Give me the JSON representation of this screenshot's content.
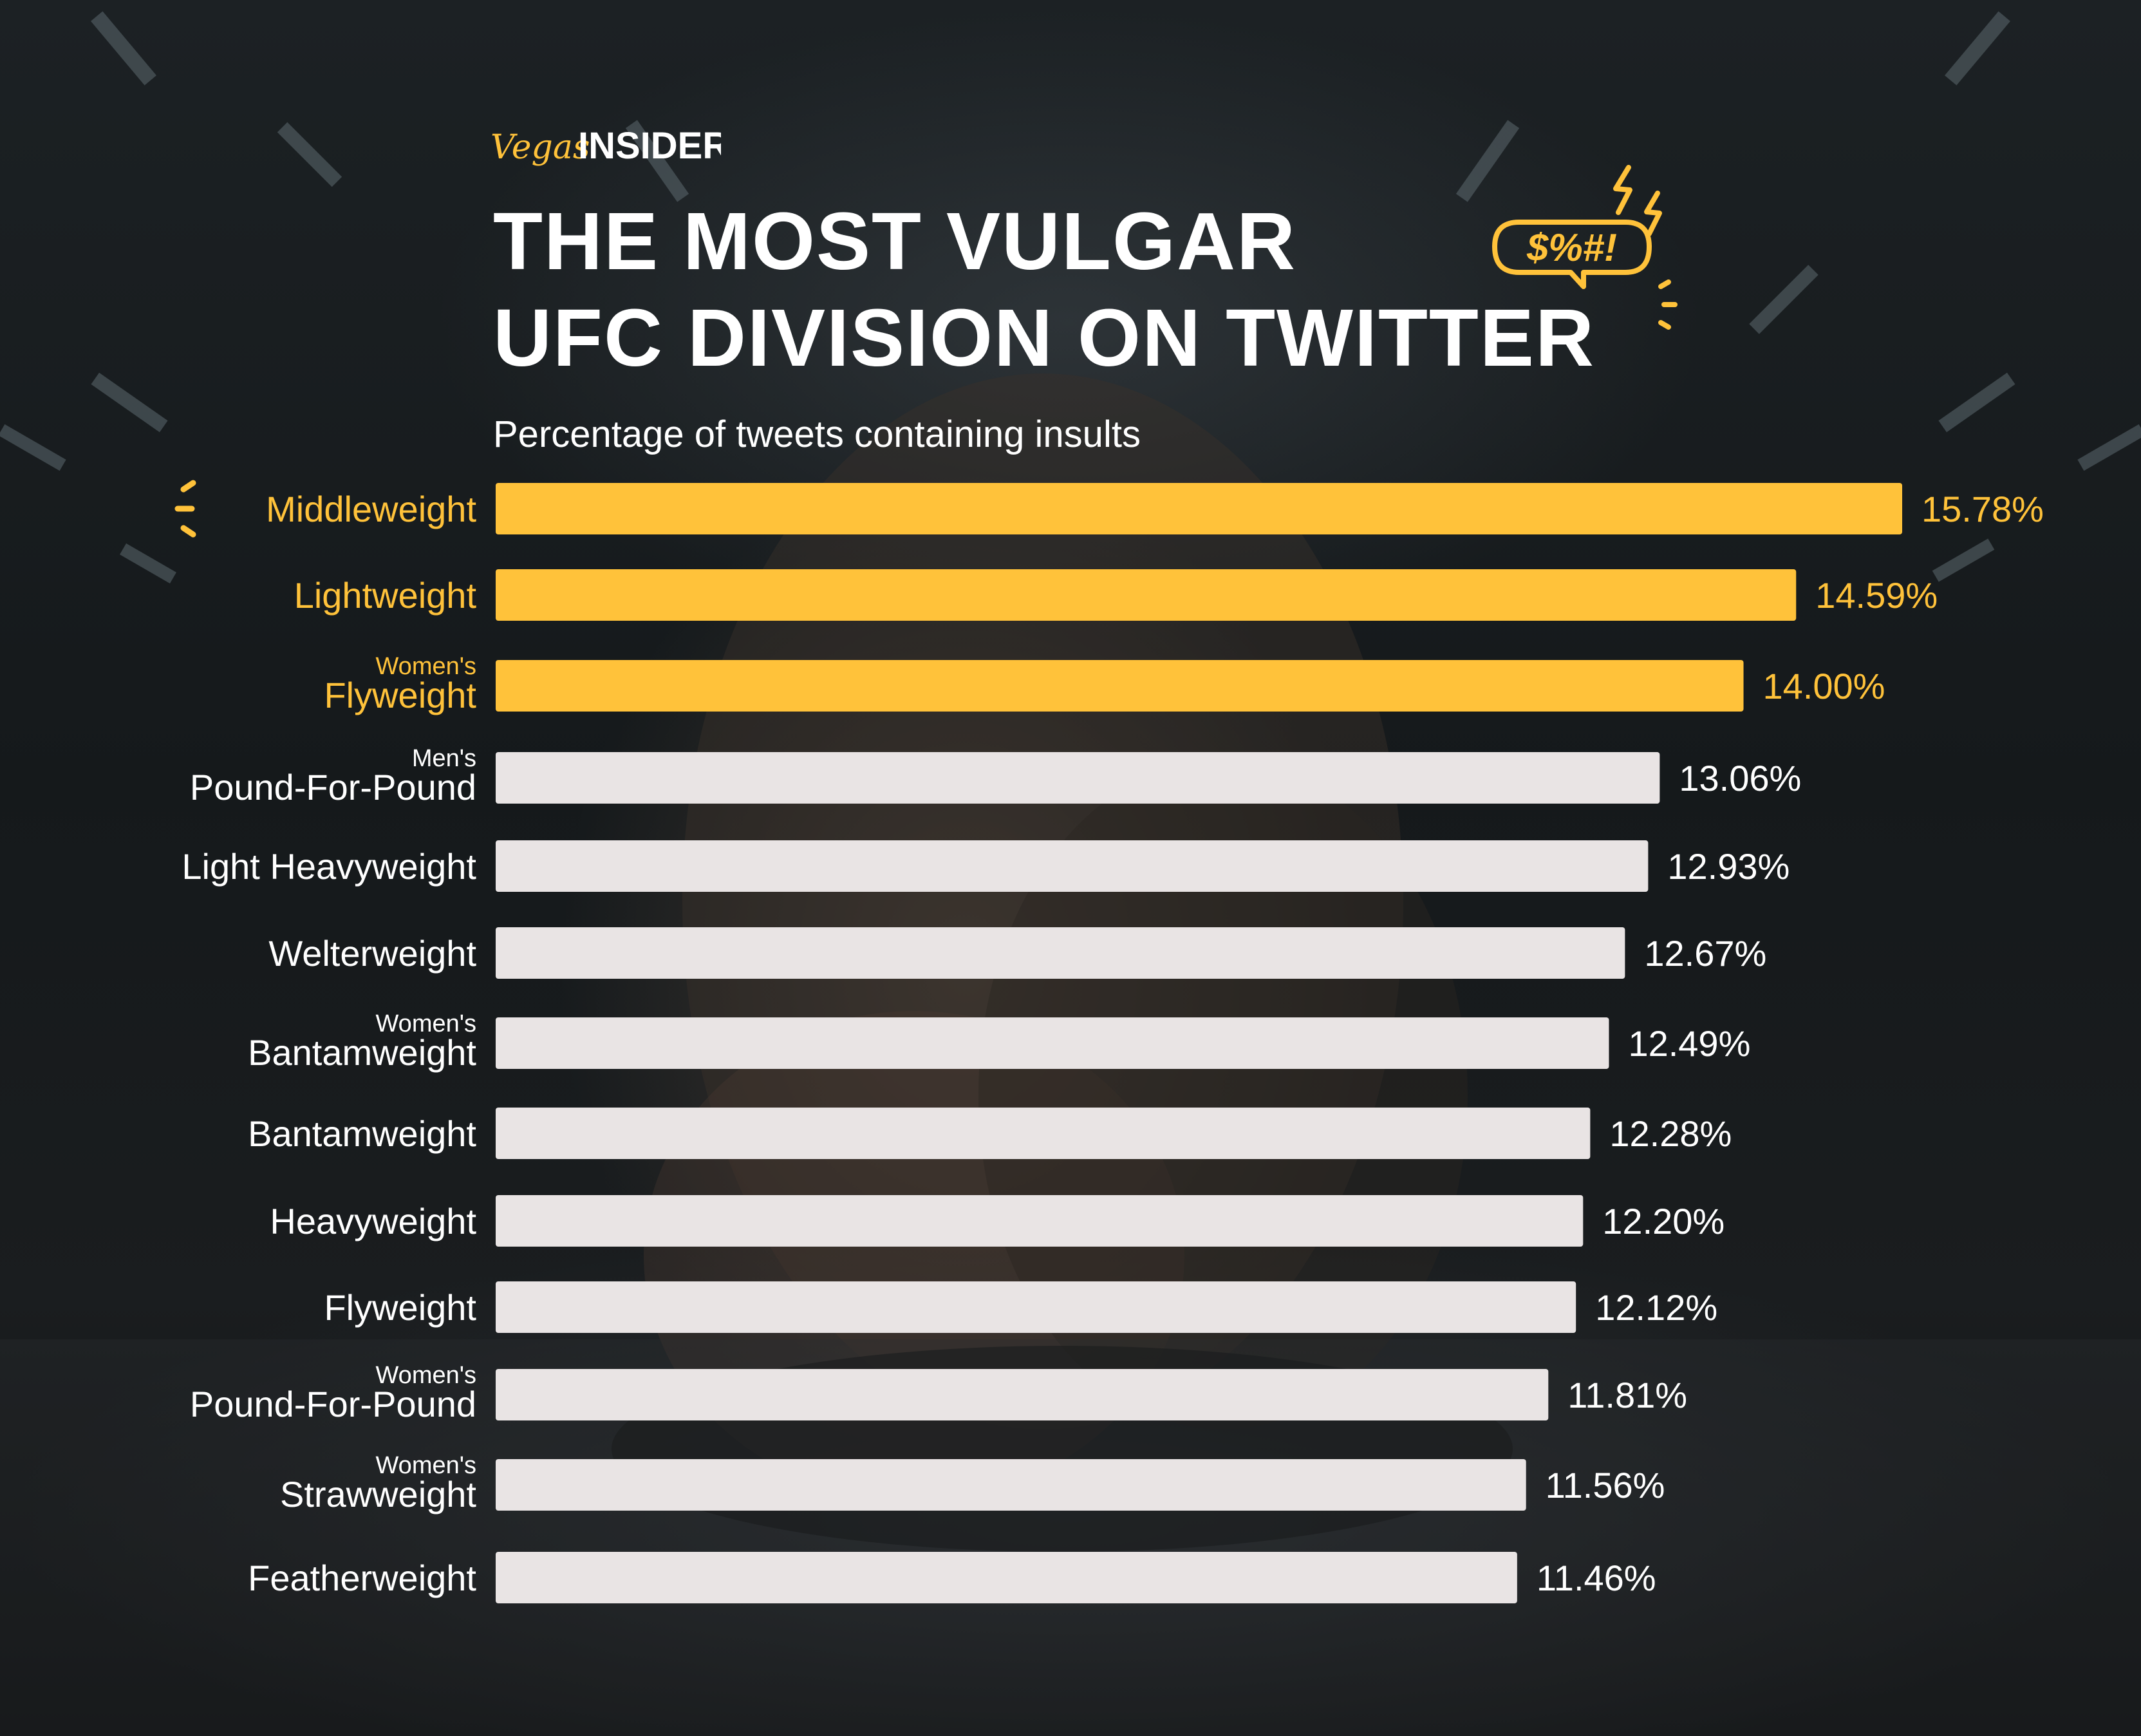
{
  "brand": {
    "script_part": "Vegas",
    "bold_part": "INSIDER"
  },
  "header": {
    "title_line_1": "THE MOST VULGAR",
    "title_line_2": "UFC DIVISION ON TWITTER",
    "subtitle": "Percentage of tweets containing insults",
    "bubble_text": "$%#!"
  },
  "colors": {
    "highlight": "#FFC23A",
    "default_bar": "#E9E4E4",
    "text_light": "#FFFFFF"
  },
  "chart_data": {
    "type": "bar",
    "orientation": "horizontal",
    "title": "THE MOST VULGAR UFC DIVISION ON TWITTER",
    "subtitle": "Percentage of tweets containing insults",
    "xlabel": "",
    "ylabel": "",
    "unit": "%",
    "xlim": [
      0,
      15.78
    ],
    "grid": false,
    "legend": "none",
    "categories": [
      {
        "prefix": "",
        "label": "Middleweight",
        "value": 15.78,
        "value_label": "15.78%",
        "highlight": true
      },
      {
        "prefix": "",
        "label": "Lightweight",
        "value": 14.59,
        "value_label": "14.59%",
        "highlight": true
      },
      {
        "prefix": "Women's",
        "label": "Flyweight",
        "value": 14.0,
        "value_label": "14.00%",
        "highlight": true
      },
      {
        "prefix": "Men's",
        "label": "Pound-For-Pound",
        "value": 13.06,
        "value_label": "13.06%",
        "highlight": false
      },
      {
        "prefix": "",
        "label": "Light Heavyweight",
        "value": 12.93,
        "value_label": "12.93%",
        "highlight": false
      },
      {
        "prefix": "",
        "label": "Welterweight",
        "value": 12.67,
        "value_label": "12.67%",
        "highlight": false
      },
      {
        "prefix": "Women's",
        "label": "Bantamweight",
        "value": 12.49,
        "value_label": "12.49%",
        "highlight": false
      },
      {
        "prefix": "",
        "label": "Bantamweight",
        "value": 12.28,
        "value_label": "12.28%",
        "highlight": false
      },
      {
        "prefix": "",
        "label": "Heavyweight",
        "value": 12.2,
        "value_label": "12.20%",
        "highlight": false
      },
      {
        "prefix": "",
        "label": "Flyweight",
        "value": 12.12,
        "value_label": "12.12%",
        "highlight": false
      },
      {
        "prefix": "Women's",
        "label": "Pound-For-Pound",
        "value": 11.81,
        "value_label": "11.81%",
        "highlight": false
      },
      {
        "prefix": "Women's",
        "label": "Strawweight",
        "value": 11.56,
        "value_label": "11.56%",
        "highlight": false
      },
      {
        "prefix": "",
        "label": "Featherweight",
        "value": 11.46,
        "value_label": "11.46%",
        "highlight": false
      }
    ]
  }
}
